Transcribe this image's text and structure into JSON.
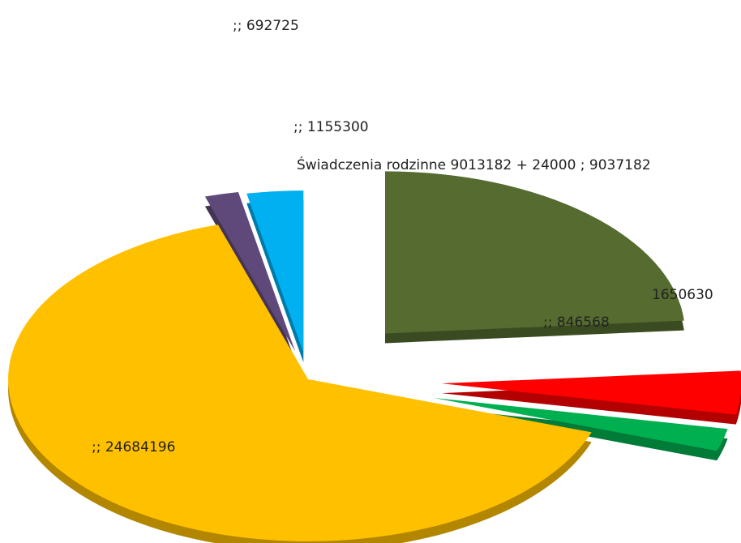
{
  "chart_data": {
    "type": "pie",
    "style": "3d-exploded",
    "title": "",
    "legend": "none",
    "series": [
      {
        "value": 9037182,
        "label": "Świadczenia rodzinne 9013182 + 24000 ; 9037182",
        "color": "#556b2f"
      },
      {
        "value": 1650630,
        "label": "1650630",
        "color": "#ff0000"
      },
      {
        "value": 846568,
        "label": ";; 846568",
        "color": "#00b050"
      },
      {
        "value": 24684196,
        "label": ";; 24684196",
        "color": "#ffc000"
      },
      {
        "value": 692725,
        "label": ";; 692725",
        "color": "#5f497a"
      },
      {
        "value": 1155300,
        "label": ";; 1155300",
        "color": "#00b0f0"
      }
    ]
  }
}
